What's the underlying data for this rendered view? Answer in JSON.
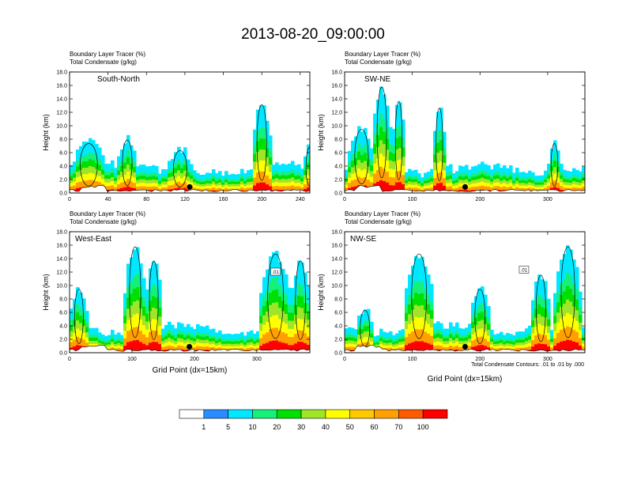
{
  "figure": {
    "title": "2013-08-20_09:00:00",
    "note": "Total Condensate Contours: .01 to .01 by .000"
  },
  "colorbar": {
    "colors": [
      "#ffffff",
      "#2a8cff",
      "#00e8ff",
      "#14f07a",
      "#00e000",
      "#a0e628",
      "#ffff00",
      "#ffc800",
      "#ffa000",
      "#ff5a00",
      "#ff0000"
    ],
    "labels": [
      "1",
      "5",
      "10",
      "20",
      "30",
      "40",
      "50",
      "60",
      "70",
      "100"
    ]
  },
  "chart_data": [
    {
      "type": "heatmap",
      "label": "South-North",
      "subtitle_line1": "Boundary Layer Tracer   (%)",
      "subtitle_line2": "Total Condensate   (g/kg)",
      "ylabel": "Height (km)",
      "xlabel": "",
      "xlim": [
        0,
        250
      ],
      "ylim": [
        0,
        18
      ],
      "xticks": [
        "0",
        "40",
        "80",
        "120",
        "160",
        "200",
        "240"
      ],
      "yticks": [
        "0.0",
        "2.0",
        "4.0",
        "6.0",
        "8.0",
        "10.0",
        "12.0",
        "14.0",
        "16.0",
        "18.0"
      ],
      "marker_x": 125,
      "contour_label": ""
    },
    {
      "type": "heatmap",
      "label": "SW-NE",
      "subtitle_line1": "Boundary Layer Tracer   (%)",
      "subtitle_line2": "Total Condensate   (g/kg)",
      "ylabel": "Height (km)",
      "xlabel": "",
      "xlim": [
        0,
        355
      ],
      "ylim": [
        0,
        18
      ],
      "xticks": [
        "0",
        "100",
        "200",
        "300"
      ],
      "yticks": [
        "0.0",
        "2.0",
        "4.0",
        "6.0",
        "8.0",
        "10.0",
        "12.0",
        "14.0",
        "16.0",
        "18.0"
      ],
      "marker_x": 178,
      "contour_label": ""
    },
    {
      "type": "heatmap",
      "label": "West-East",
      "subtitle_line1": "Boundary Layer Tracer   (%)",
      "subtitle_line2": "Total Condensate   (g/kg)",
      "ylabel": "Height (km)",
      "xlabel": "Grid Point (dx=15km)",
      "xlim": [
        0,
        385
      ],
      "ylim": [
        0,
        18
      ],
      "xticks": [
        "0",
        "100",
        "200",
        "300"
      ],
      "yticks": [
        "0.0",
        "2.0",
        "4.0",
        "6.0",
        "8.0",
        "10.0",
        "12.0",
        "14.0",
        "16.0",
        "18.0"
      ],
      "marker_x": 192,
      "contour_label": ".01"
    },
    {
      "type": "heatmap",
      "label": "NW-SE",
      "subtitle_line1": "Boundary Layer Tracer   (%)",
      "subtitle_line2": "Total Condensate   (g/kg)",
      "ylabel": "Height (km)",
      "xlabel": "Grid Point (dx=15km)",
      "xlim": [
        0,
        355
      ],
      "ylim": [
        0,
        18
      ],
      "xticks": [
        "0",
        "100",
        "200",
        "300"
      ],
      "yticks": [
        "0.0",
        "2.0",
        "4.0",
        "6.0",
        "8.0",
        "10.0",
        "12.0",
        "14.0",
        "16.0",
        "18.0"
      ],
      "marker_x": 178,
      "contour_label": ".01"
    }
  ]
}
